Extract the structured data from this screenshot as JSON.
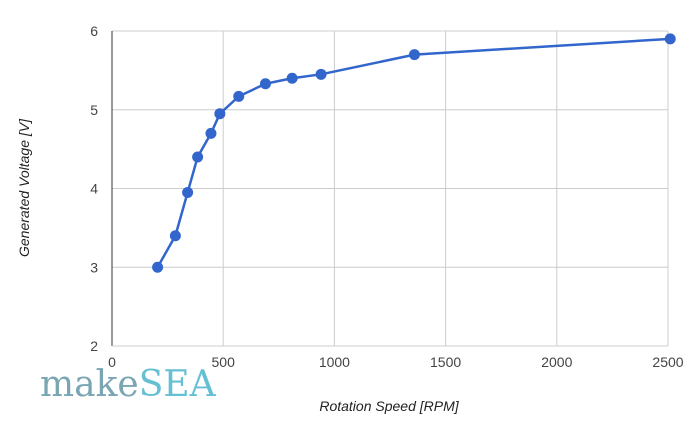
{
  "chart_data": {
    "type": "line",
    "xlabel": "Rotation Speed [RPM]",
    "ylabel": "Generated Voltage [V]",
    "xlim": [
      0,
      2500
    ],
    "ylim": [
      2,
      6
    ],
    "xticks": [
      0,
      500,
      1000,
      1500,
      2000,
      2500
    ],
    "yticks": [
      2,
      3,
      4,
      5,
      6
    ],
    "grid": true,
    "series": [
      {
        "color": "#3366cc",
        "points": [
          {
            "x": 205,
            "y": 3.0
          },
          {
            "x": 285,
            "y": 3.4
          },
          {
            "x": 340,
            "y": 3.95
          },
          {
            "x": 385,
            "y": 4.4
          },
          {
            "x": 445,
            "y": 4.7
          },
          {
            "x": 485,
            "y": 4.95
          },
          {
            "x": 570,
            "y": 5.17
          },
          {
            "x": 690,
            "y": 5.33
          },
          {
            "x": 810,
            "y": 5.4
          },
          {
            "x": 940,
            "y": 5.45
          },
          {
            "x": 1360,
            "y": 5.7
          },
          {
            "x": 2510,
            "y": 5.9
          }
        ]
      }
    ]
  },
  "logo": {
    "part1": "make",
    "part2": "SEA",
    "color1": "#7aa6b4",
    "color2": "#66c0d4"
  }
}
